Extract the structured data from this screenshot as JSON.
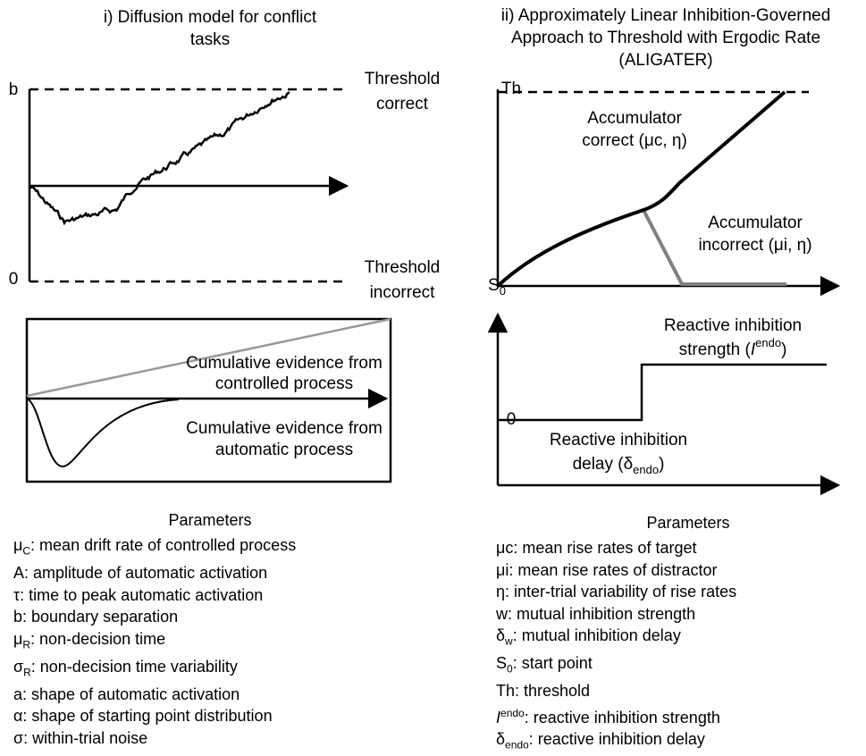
{
  "left": {
    "title": [
      "i) Diffusion model for conflict",
      "tasks"
    ],
    "top_panel": {
      "b_label": "b",
      "zero_label": "0",
      "threshold_correct": [
        "Threshold",
        "correct"
      ],
      "threshold_incorrect": [
        "Threshold",
        "incorrect"
      ]
    },
    "bottom_panel": {
      "controlled": [
        "Cumulative evidence from",
        "controlled process"
      ],
      "automatic": [
        "Cumulative evidence from",
        "automatic process"
      ]
    },
    "parameters": {
      "heading": "Parameters",
      "items": [
        {
          "sym": "μ",
          "sub": "C",
          "desc": ": mean drift rate of controlled process"
        },
        {
          "sym": "A",
          "desc": ": amplitude of automatic activation"
        },
        {
          "sym": "τ",
          "desc": ": time to peak automatic activation"
        },
        {
          "sym": "b",
          "desc": ": boundary separation"
        },
        {
          "sym": "μ",
          "sub": "R",
          "desc": ": non-decision time"
        },
        {
          "sym": "σ",
          "sub": "R",
          "desc": ": non-decision time variability"
        },
        {
          "sym": "a",
          "desc": ": shape of automatic activation"
        },
        {
          "sym": "α",
          "desc": ": shape of starting point distribution"
        },
        {
          "sym": "σ",
          "desc": ": within-trial noise"
        }
      ]
    }
  },
  "right": {
    "title": [
      "ii) Approximately Linear Inhibition-Governed",
      "Approach to Threshold with Ergodic Rate",
      "(ALIGATER)"
    ],
    "top_panel": {
      "th_label": "Th",
      "start_label": {
        "sym": "S",
        "sub": "0"
      },
      "acc_correct": [
        "Accumulator",
        "correct (μc, η)"
      ],
      "acc_incorrect": [
        "Accumulator",
        "incorrect (μi, η)"
      ]
    },
    "bottom_panel": {
      "zero_label": "0",
      "strength": {
        "line1": "Reactive inhibition",
        "before": "strength (",
        "italic": "I",
        "sup": "endo",
        "after": ")"
      },
      "delay": {
        "line1": "Reactive inhibition",
        "before": "delay (",
        "sym": "δ",
        "sub": "endo",
        "after": ")"
      }
    },
    "parameters": {
      "heading": "Parameters",
      "items": [
        {
          "sym": "μc",
          "desc": ": mean rise rates of target"
        },
        {
          "sym": "μi",
          "desc": ": mean rise rates of distractor"
        },
        {
          "sym": "η",
          "desc": ": inter-trial variability of rise rates"
        },
        {
          "sym": "w",
          "desc": ": mutual inhibition strength"
        },
        {
          "sym": "δ",
          "sub": "w",
          "desc": ": mutual inhibition delay"
        },
        {
          "sym": "S",
          "sub": "0",
          "desc": ": start point"
        },
        {
          "sym": "Th",
          "desc": ": threshold"
        },
        {
          "sym": "I",
          "italic": true,
          "sup": "endo",
          "desc": ": reactive inhibition strength"
        },
        {
          "sym": "δ",
          "sub": "endo",
          "desc": ": reactive inhibition delay"
        }
      ]
    }
  }
}
